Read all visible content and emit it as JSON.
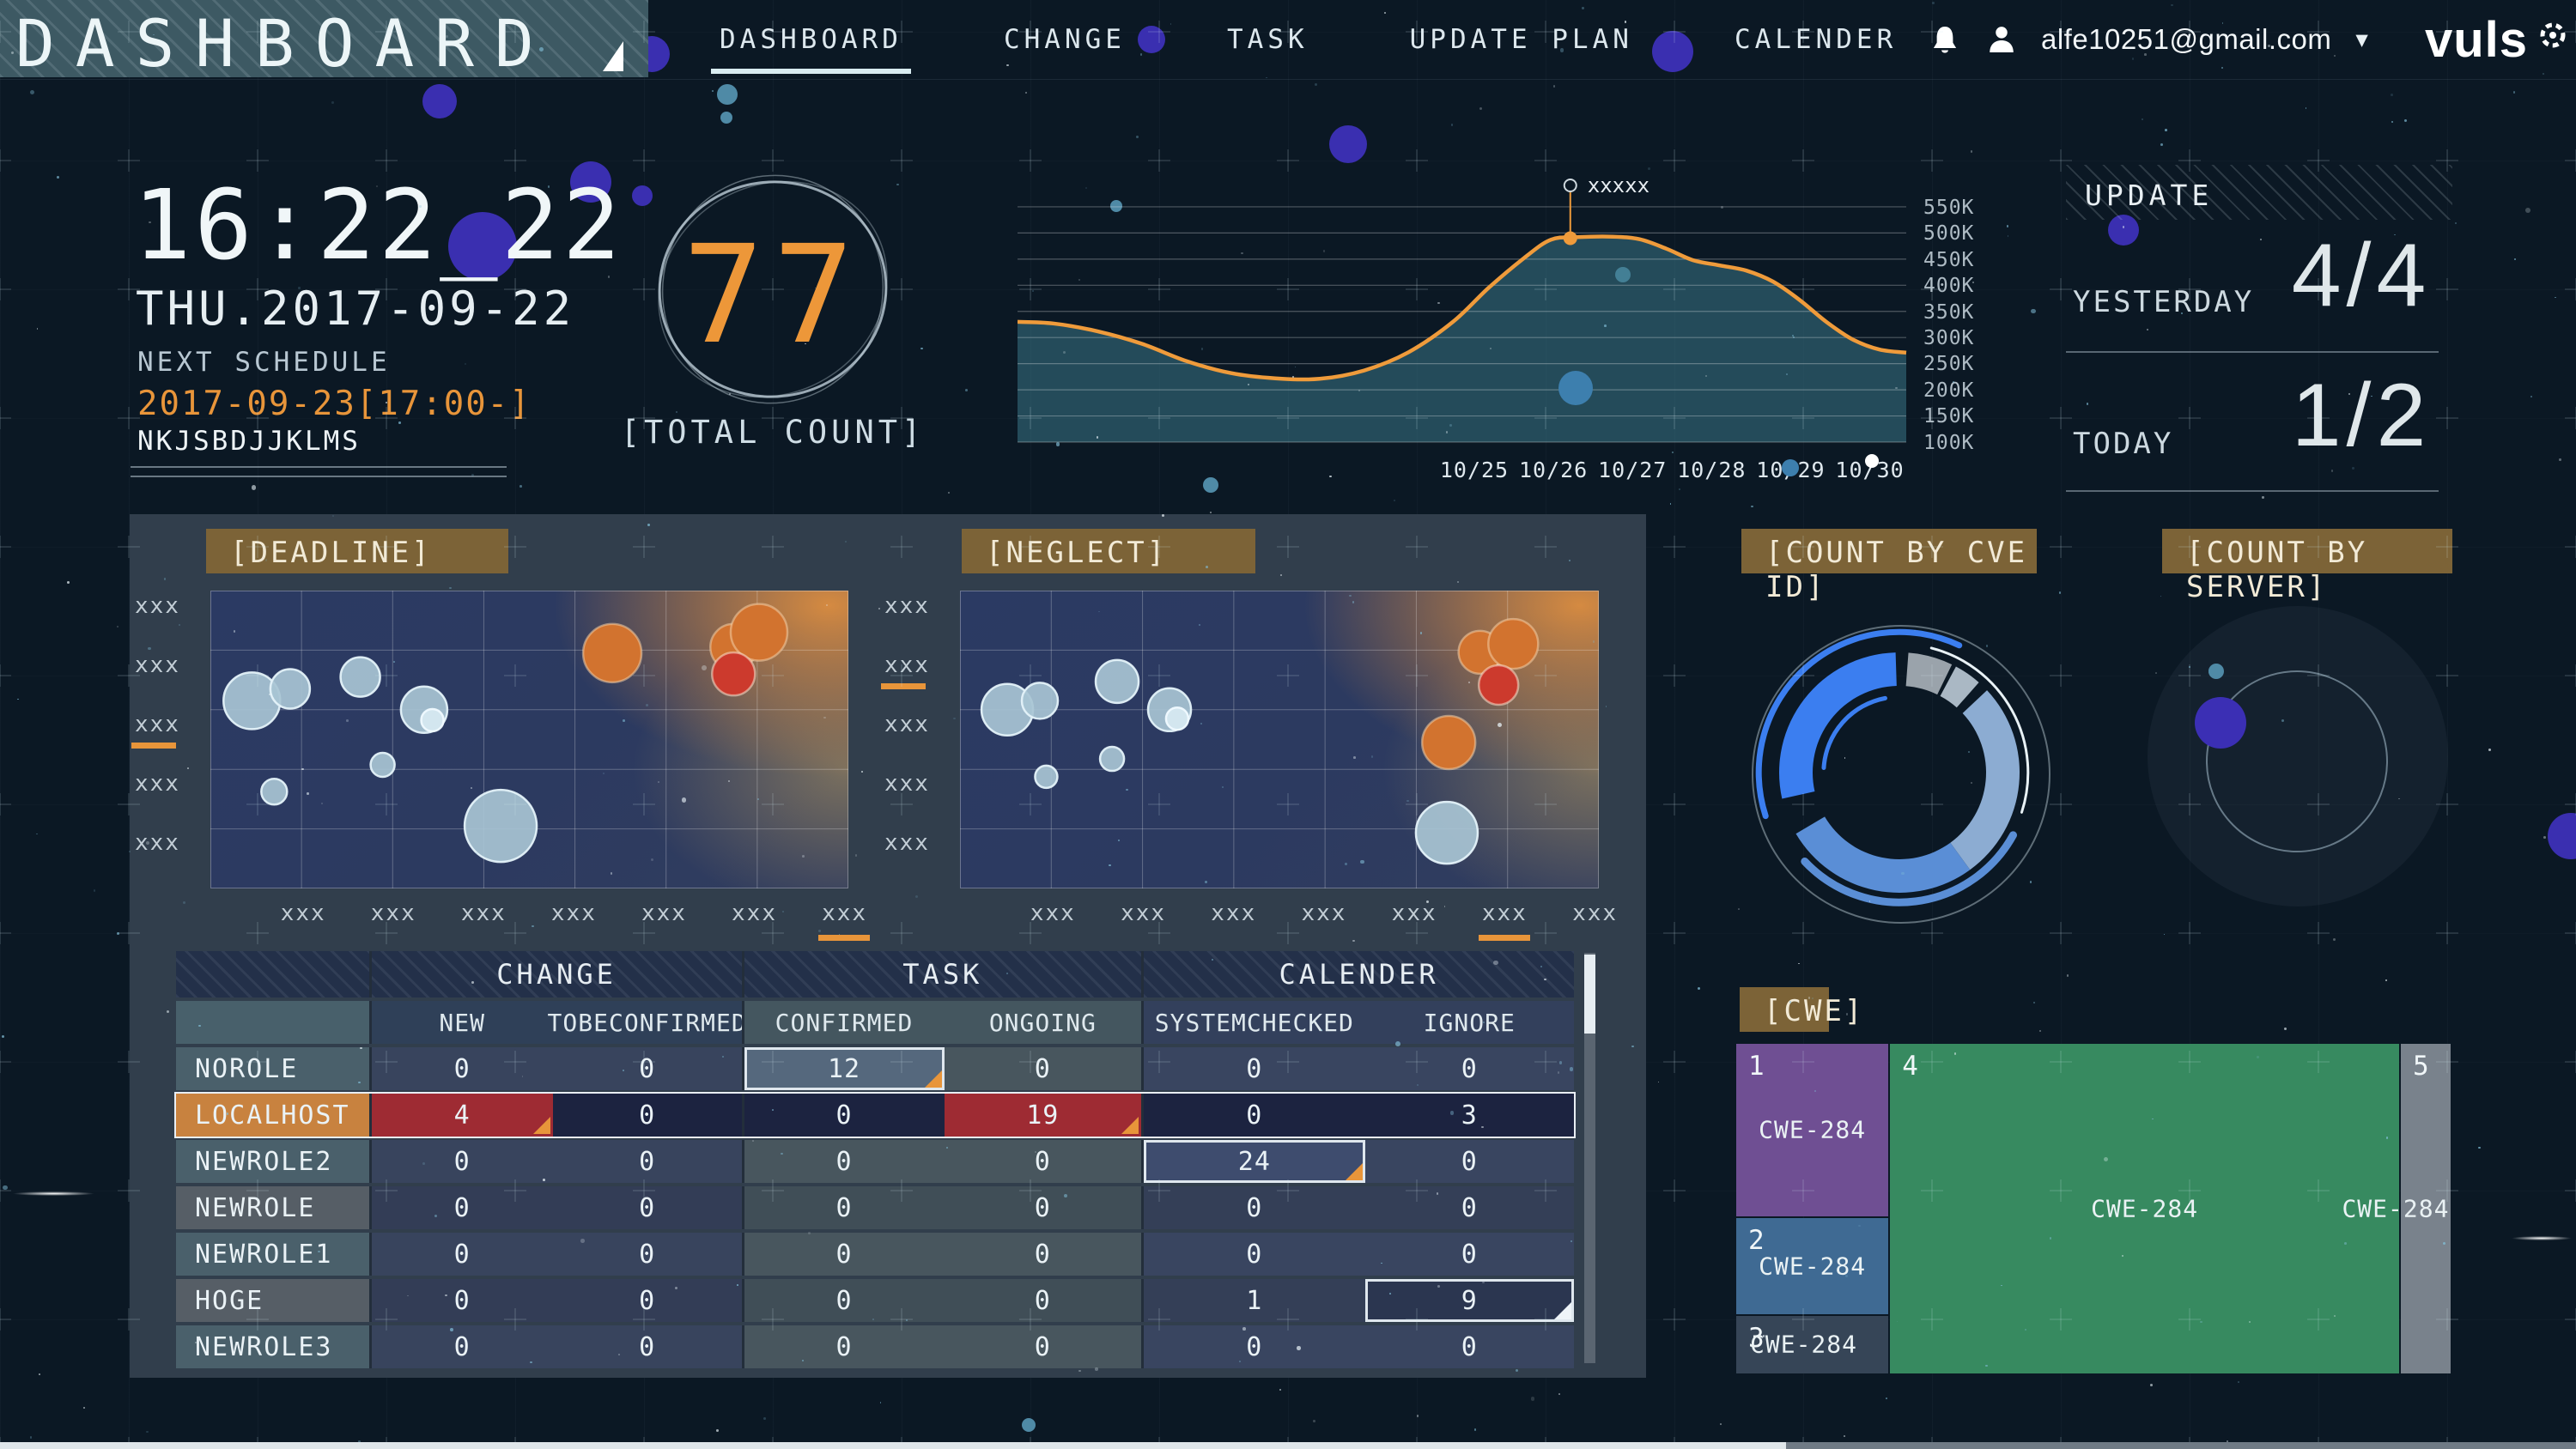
{
  "header": {
    "logo": "DASHBOARD",
    "nav": [
      {
        "label": "DASHBOARD",
        "active": true
      },
      {
        "label": "CHANGE",
        "active": false
      },
      {
        "label": "TASK",
        "active": false
      },
      {
        "label": "UPDATE PLAN",
        "active": false
      },
      {
        "label": "CALENDER",
        "active": false
      }
    ],
    "email": "alfe10251@gmail.com",
    "brand": "vuls"
  },
  "clock": {
    "time": "16:22_22",
    "date": "THU.2017-09-22",
    "schedule_label": "NEXT SCHEDULE",
    "schedule_value": "2017-09-23[17:00-]",
    "schedule_code": "NKJSBDJJKLMS"
  },
  "total_count": {
    "value": "77",
    "label": "[TOTAL COUNT]"
  },
  "update_panel": {
    "title": "UPDATE",
    "rows": [
      {
        "label": "YESTERDAY",
        "value": "4/4"
      },
      {
        "label": "TODAY",
        "value": "1/2"
      }
    ]
  },
  "table": {
    "group_headers": [
      "CHANGE",
      "TASK",
      "CALENDER"
    ],
    "col_headers": [
      "NEW",
      "TOBECONFIRMED",
      "CONFIRMED",
      "ONGOING",
      "SYSTEMCHECKED",
      "IGNORE"
    ],
    "rows": [
      {
        "name": "NOROLE",
        "values": [
          "0",
          "0",
          "12",
          "0",
          "0",
          "0"
        ],
        "cell_styles": {
          "2": "boxed bg-box-light tri tri-orange"
        }
      },
      {
        "name": "LOCALHOST",
        "values": [
          "4",
          "0",
          "0",
          "19",
          "0",
          "3"
        ],
        "row_style": "alert",
        "label_style": "label-orange",
        "cell_styles": {
          "0": "cell-red tri tri-orange",
          "3": "cell-red tri tri-orange"
        }
      },
      {
        "name": "NEWROLE2",
        "values": [
          "0",
          "0",
          "0",
          "0",
          "24",
          "0"
        ],
        "cell_styles": {
          "4": "boxed bg-box-mid tri tri-orange"
        }
      },
      {
        "name": "NEWROLE",
        "values": [
          "0",
          "0",
          "0",
          "0",
          "0",
          "0"
        ]
      },
      {
        "name": "NEWROLE1",
        "values": [
          "0",
          "0",
          "0",
          "0",
          "0",
          "0"
        ]
      },
      {
        "name": "HOGE",
        "values": [
          "0",
          "0",
          "0",
          "0",
          "1",
          "9"
        ],
        "cell_styles": {
          "5": "boxed bg-box-dark tri tri-white"
        }
      },
      {
        "name": "NEWROLE3",
        "values": [
          "0",
          "0",
          "0",
          "0",
          "0",
          "0"
        ]
      }
    ]
  },
  "chart_data": [
    {
      "id": "trend",
      "type": "area",
      "ylabel": "",
      "xlabel": "",
      "y_ticks": [
        "550K",
        "500K",
        "450K",
        "400K",
        "350K",
        "300K",
        "250K",
        "200K",
        "150K",
        "100K"
      ],
      "ylim": [
        100,
        597
      ],
      "x_tick_labels": [
        "10/25",
        "10/26",
        "10/27",
        "10/28",
        "10/29",
        "10/30"
      ],
      "x_tick_pos": [
        0.514,
        0.603,
        0.692,
        0.781,
        0.87,
        0.959
      ],
      "annotation": {
        "text": "xxxxx",
        "x": 0.622,
        "y": 490
      },
      "line_color": "#ef9b3b",
      "fill_color": "rgba(58,118,134,0.55)",
      "points": [
        [
          0,
          330
        ],
        [
          0.04,
          327
        ],
        [
          0.09,
          312
        ],
        [
          0.14,
          288
        ],
        [
          0.19,
          255
        ],
        [
          0.24,
          232
        ],
        [
          0.29,
          222
        ],
        [
          0.34,
          221
        ],
        [
          0.39,
          237
        ],
        [
          0.44,
          272
        ],
        [
          0.49,
          330
        ],
        [
          0.53,
          395
        ],
        [
          0.57,
          452
        ],
        [
          0.6,
          487
        ],
        [
          0.63,
          492
        ],
        [
          0.67,
          493
        ],
        [
          0.7,
          488
        ],
        [
          0.73,
          470
        ],
        [
          0.76,
          448
        ],
        [
          0.79,
          438
        ],
        [
          0.82,
          428
        ],
        [
          0.85,
          407
        ],
        [
          0.88,
          372
        ],
        [
          0.91,
          330
        ],
        [
          0.94,
          296
        ],
        [
          0.97,
          277
        ],
        [
          1,
          271
        ]
      ]
    },
    {
      "id": "deadline",
      "type": "bubble",
      "title": "[DEADLINE]",
      "x_labels": [
        "xxx",
        "xxx",
        "xxx",
        "xxx",
        "xxx",
        "xxx",
        "xxx"
      ],
      "y_labels": [
        "xxx",
        "xxx",
        "xxx",
        "xxx",
        "xxx"
      ],
      "x_underline_index": 6,
      "y_underline_index": 2,
      "bubbles": [
        {
          "x": 0.065,
          "y": 0.37,
          "r": 33,
          "c": "light"
        },
        {
          "x": 0.125,
          "y": 0.33,
          "r": 23,
          "c": "light"
        },
        {
          "x": 0.235,
          "y": 0.29,
          "r": 23,
          "c": "light"
        },
        {
          "x": 0.335,
          "y": 0.4,
          "r": 27,
          "c": "light"
        },
        {
          "x": 0.348,
          "y": 0.435,
          "r": 13,
          "c": "lighter"
        },
        {
          "x": 0.27,
          "y": 0.585,
          "r": 14,
          "c": "light"
        },
        {
          "x": 0.1,
          "y": 0.675,
          "r": 15,
          "c": "light"
        },
        {
          "x": 0.455,
          "y": 0.79,
          "r": 42,
          "c": "light"
        },
        {
          "x": 0.63,
          "y": 0.21,
          "r": 34,
          "c": "orange"
        },
        {
          "x": 0.82,
          "y": 0.19,
          "r": 27,
          "c": "orange"
        },
        {
          "x": 0.86,
          "y": 0.14,
          "r": 33,
          "c": "orange"
        },
        {
          "x": 0.82,
          "y": 0.28,
          "r": 25,
          "c": "red"
        }
      ]
    },
    {
      "id": "neglect",
      "type": "bubble",
      "title": "[NEGLECT]",
      "x_labels": [
        "xxx",
        "xxx",
        "xxx",
        "xxx",
        "xxx",
        "xxx",
        "xxx"
      ],
      "y_labels": [
        "xxx",
        "xxx",
        "xxx",
        "xxx",
        "xxx"
      ],
      "x_underline_index": 5,
      "y_underline_index": 1,
      "bubbles": [
        {
          "x": 0.074,
          "y": 0.4,
          "r": 30,
          "c": "light"
        },
        {
          "x": 0.125,
          "y": 0.37,
          "r": 21,
          "c": "light"
        },
        {
          "x": 0.246,
          "y": 0.305,
          "r": 25,
          "c": "light"
        },
        {
          "x": 0.328,
          "y": 0.4,
          "r": 25,
          "c": "light"
        },
        {
          "x": 0.34,
          "y": 0.43,
          "r": 13,
          "c": "lighter"
        },
        {
          "x": 0.238,
          "y": 0.565,
          "r": 14,
          "c": "light"
        },
        {
          "x": 0.135,
          "y": 0.625,
          "r": 13,
          "c": "light"
        },
        {
          "x": 0.814,
          "y": 0.207,
          "r": 25,
          "c": "orange"
        },
        {
          "x": 0.866,
          "y": 0.179,
          "r": 29,
          "c": "orange"
        },
        {
          "x": 0.843,
          "y": 0.317,
          "r": 23,
          "c": "red"
        },
        {
          "x": 0.765,
          "y": 0.51,
          "r": 31,
          "c": "orange"
        },
        {
          "x": 0.762,
          "y": 0.813,
          "r": 36,
          "c": "light"
        }
      ]
    },
    {
      "id": "cve_donut",
      "type": "donut",
      "title": "[COUNT BY CVE ID]",
      "segments": [
        {
          "from": 0.012,
          "to": 0.072,
          "color": "#9aa3ab"
        },
        {
          "from": 0.078,
          "to": 0.115,
          "color": "#aab8c4"
        },
        {
          "from": 0.13,
          "to": 0.4,
          "color": "#8cacd2"
        },
        {
          "from": 0.4,
          "to": 0.665,
          "color": "#5a8ed6"
        },
        {
          "from": 0.715,
          "to": 0.995,
          "color": "#3b7ef0"
        }
      ],
      "accents": [
        {
          "r": 1.17,
          "from": 0.7,
          "to": 1.07,
          "color": "#3b7ef0",
          "w": 7
        },
        {
          "r": 1.08,
          "from": 0.33,
          "to": 0.63,
          "color": "#5a8ed6",
          "w": 9
        },
        {
          "r": 1.07,
          "from": 0.04,
          "to": 0.3,
          "color": "#e9f2f6",
          "w": 3
        },
        {
          "r": 0.63,
          "from": 0.76,
          "to": 0.97,
          "color": "#3b7ef0",
          "w": 5
        }
      ]
    },
    {
      "id": "server",
      "type": "scatter",
      "title": "[COUNT BY SERVER]",
      "dots": [
        {
          "x": 0.24,
          "y": 0.39,
          "r": 30,
          "color": "#3b2fb4"
        },
        {
          "x": 0.225,
          "y": 0.235,
          "r": 9,
          "color": "#4f8aa6"
        }
      ]
    },
    {
      "id": "cwe_treemap",
      "type": "treemap",
      "title": "[CWE]",
      "cells": [
        {
          "n": "1",
          "label": "CWE-284",
          "color": "#6f4f93",
          "x": 0,
          "y": 0,
          "w": 0.215,
          "h": 0.525,
          "label_pos": "center"
        },
        {
          "n": "2",
          "label": "CWE-284",
          "color": "#3f6a93",
          "x": 0,
          "y": 0.525,
          "w": 0.215,
          "h": 0.295,
          "label_pos": "center"
        },
        {
          "n": "3",
          "label": "CWE-284",
          "color": "#364557",
          "x": 0,
          "y": 0.82,
          "w": 0.215,
          "h": 0.18,
          "label_pos": "left"
        },
        {
          "n": "4",
          "label": "CWE-284",
          "color": "#378a60",
          "x": 0.215,
          "y": 0,
          "w": 0.713,
          "h": 1,
          "label_pos": "center"
        },
        {
          "n": "5",
          "label": "CWE-284",
          "color": "#79828c",
          "x": 0.928,
          "y": 0,
          "w": 0.072,
          "h": 1,
          "label_pos": "edge"
        }
      ]
    }
  ],
  "widget_titles": {
    "deadline": "[DEADLINE]",
    "neglect": "[NEGLECT]",
    "cve": "[COUNT BY CVE ID]",
    "server": "[COUNT BY SERVER]",
    "cwe": "[CWE]"
  }
}
